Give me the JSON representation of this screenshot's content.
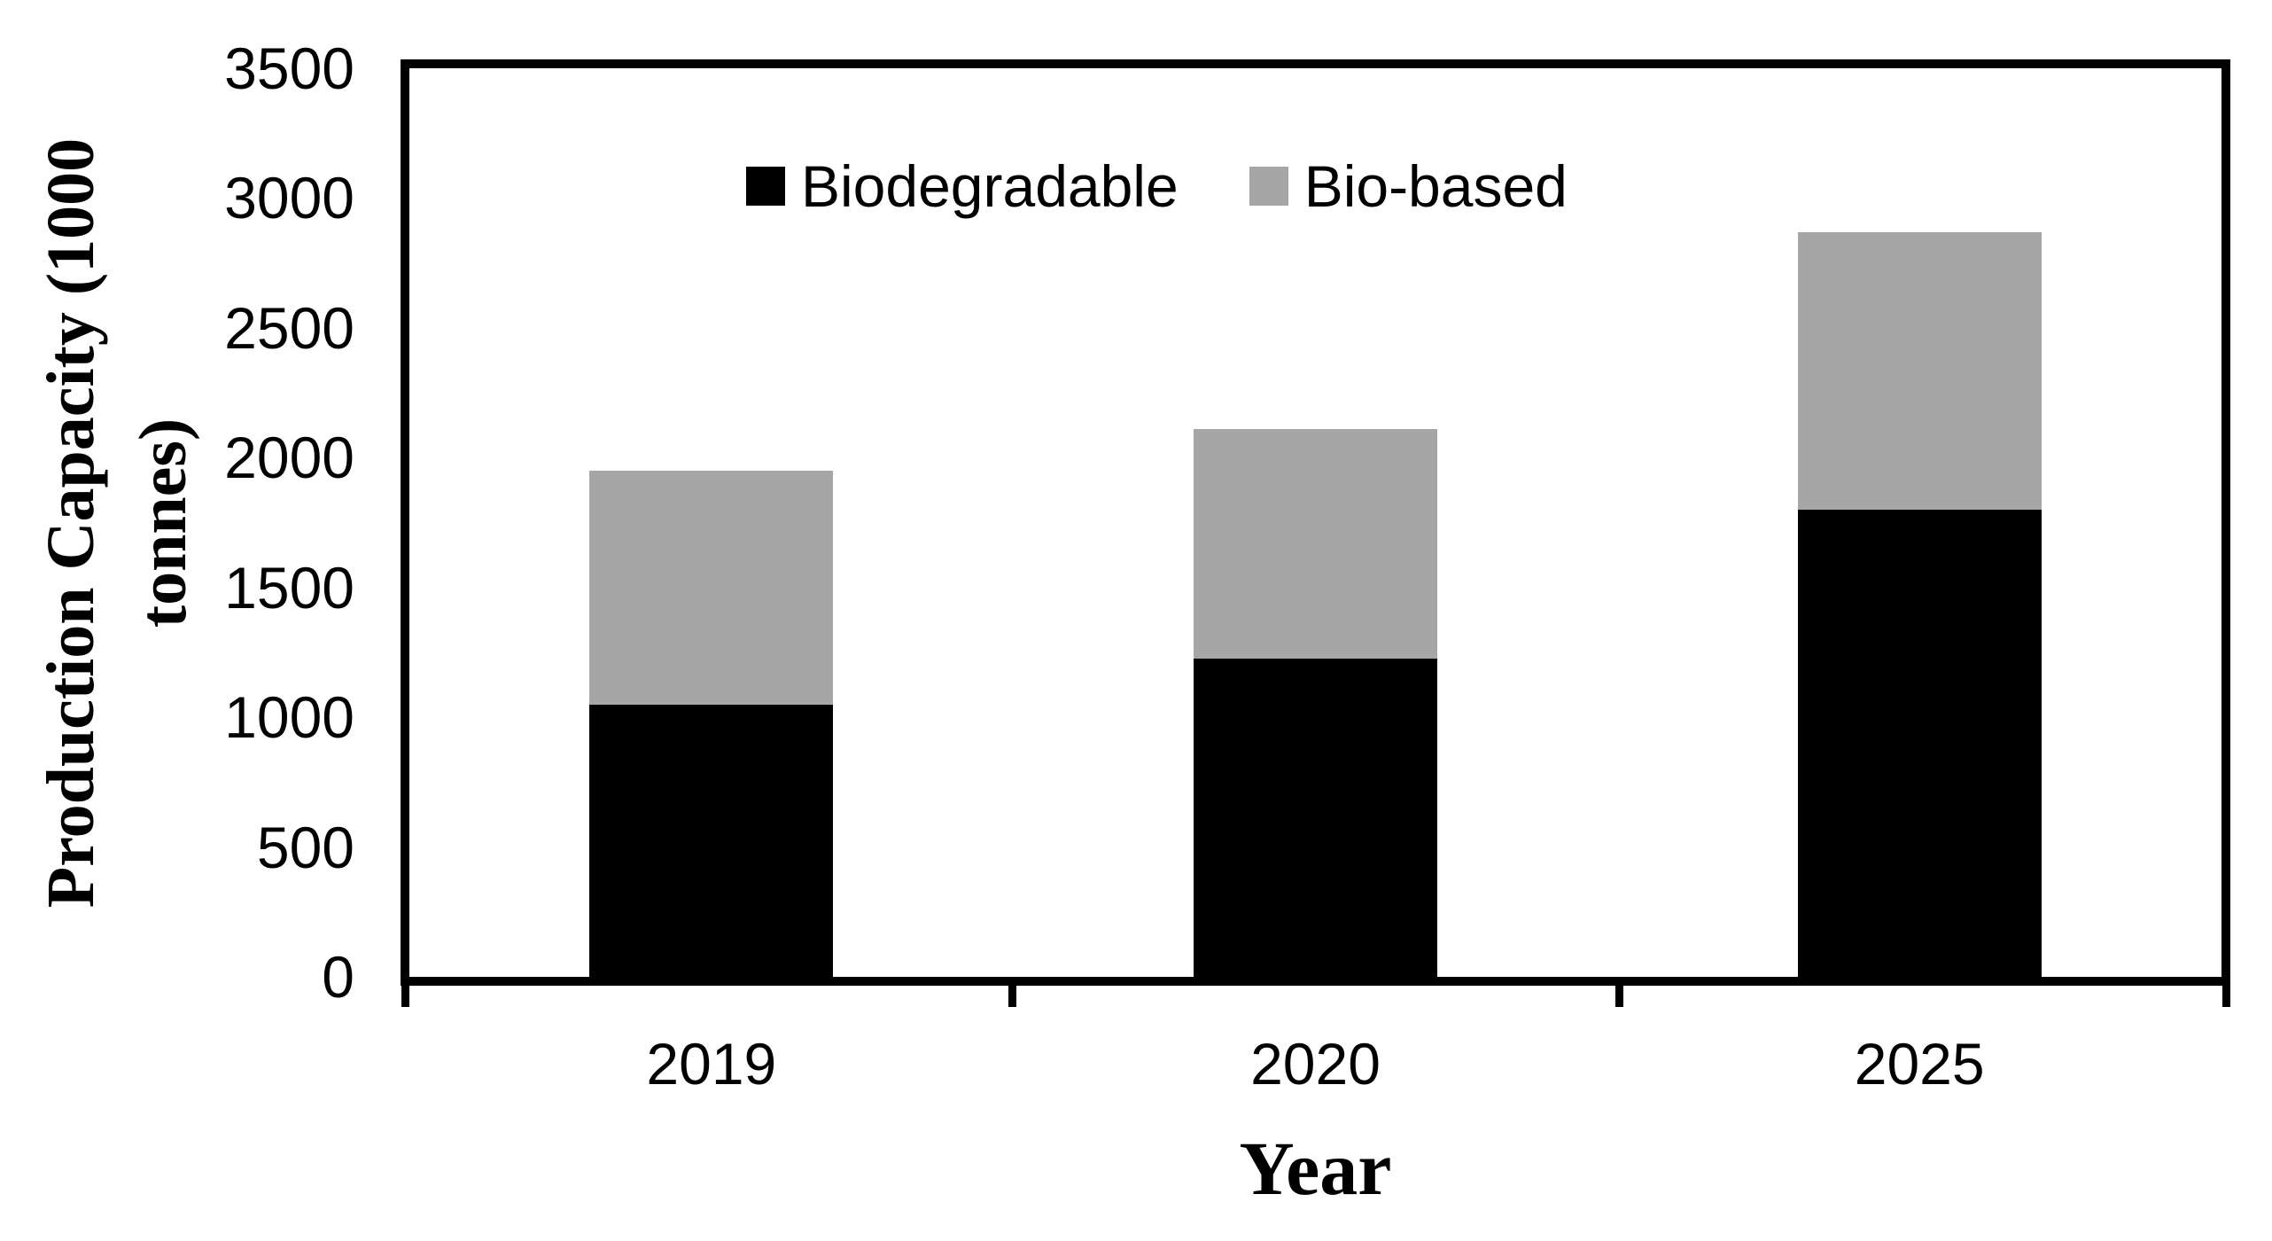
{
  "chart_data": {
    "type": "bar",
    "stacked": true,
    "title": "",
    "xlabel": "Year",
    "ylabel": "Production Capacity (1000\ntonnes)",
    "categories": [
      "2019",
      "2020",
      "2025"
    ],
    "series": [
      {
        "name": "Biodegradable",
        "color": "#000000",
        "values": [
          1050,
          1227,
          1800
        ]
      },
      {
        "name": "Bio-based",
        "color": "#a6a6a6",
        "values": [
          900,
          884,
          1070
        ]
      }
    ],
    "stack_totals": [
      1950,
      2111,
      2870
    ],
    "ylim": [
      0,
      3500
    ],
    "yticks": [
      0,
      500,
      1000,
      1500,
      2000,
      2500,
      3000,
      3500
    ],
    "grid": false,
    "legend_position": "top-center-inside",
    "plot_border_color": "#000000",
    "background_color": "#ffffff"
  }
}
